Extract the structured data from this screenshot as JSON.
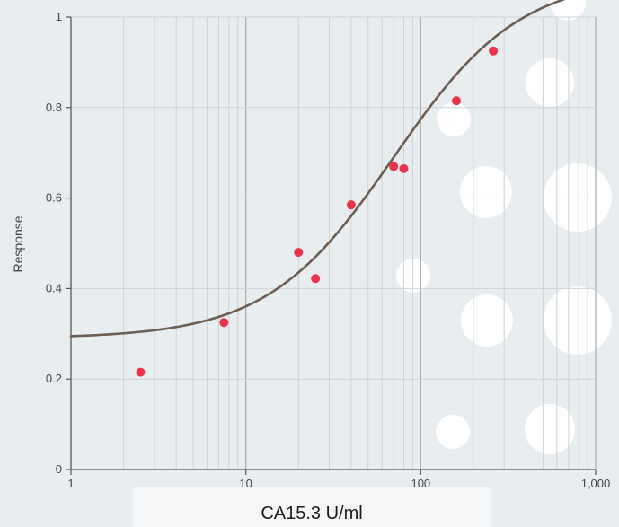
{
  "chart_data": {
    "type": "scatter",
    "title": "",
    "xlabel": "CA15.3 U/ml",
    "ylabel": "Response",
    "x_scale": "log",
    "xlim": [
      1,
      1000
    ],
    "ylim": [
      0,
      1
    ],
    "grid": true,
    "x_ticks": [
      {
        "value": 1,
        "label": "1"
      },
      {
        "value": 10,
        "label": "10"
      },
      {
        "value": 100,
        "label": "100"
      },
      {
        "value": 1000,
        "label": "1,000"
      }
    ],
    "y_ticks": [
      {
        "value": 0,
        "label": "0"
      },
      {
        "value": 0.2,
        "label": "0.2"
      },
      {
        "value": 0.4,
        "label": "0.4"
      },
      {
        "value": 0.6,
        "label": "0.6"
      },
      {
        "value": 0.8,
        "label": "0.8"
      },
      {
        "value": 1,
        "label": "1"
      }
    ],
    "series": [
      {
        "points": [
          {
            "x": 2.5,
            "y": 0.215
          },
          {
            "x": 7.5,
            "y": 0.325
          },
          {
            "x": 20,
            "y": 0.48
          },
          {
            "x": 25,
            "y": 0.422
          },
          {
            "x": 40,
            "y": 0.585
          },
          {
            "x": 70,
            "y": 0.67
          },
          {
            "x": 80,
            "y": 0.665
          },
          {
            "x": 160,
            "y": 0.815
          },
          {
            "x": 260,
            "y": 0.925
          }
        ]
      }
    ],
    "fit_curve": {
      "type": "4PL",
      "bottom": 0.29,
      "top": 1.09,
      "ec50": 70,
      "hill": 1.2
    },
    "colors": {
      "points": "#e8334a",
      "curve": "#6b5d52",
      "background": "#e8edf0",
      "grid_major": "#a8a8a8",
      "grid_minor": "#cfd2d4",
      "decor_circles": "#ffffff"
    }
  }
}
